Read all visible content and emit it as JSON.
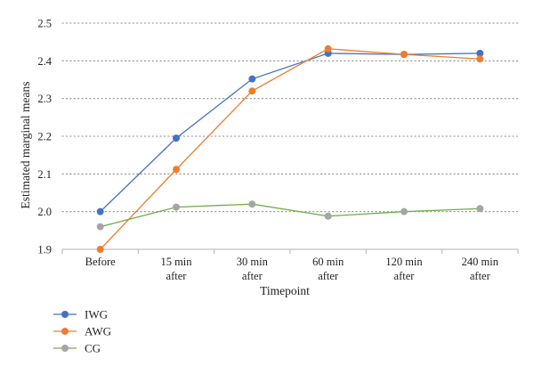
{
  "chart_data": {
    "type": "line",
    "categories": [
      [
        "Before"
      ],
      [
        "15 min",
        "after"
      ],
      [
        "30 min",
        "after"
      ],
      [
        "60 min",
        "after"
      ],
      [
        "120 min",
        "after"
      ],
      [
        "240 min",
        "after"
      ]
    ],
    "series": [
      {
        "name": "IWG",
        "color": "#4472c4",
        "values": [
          2.0,
          2.195,
          2.352,
          2.42,
          2.417,
          2.42
        ]
      },
      {
        "name": "AWG",
        "color": "#ed7d31",
        "values": [
          1.9,
          2.112,
          2.32,
          2.432,
          2.417,
          2.405
        ]
      },
      {
        "name": "CG",
        "color": "#a5a5a5",
        "values": [
          1.96,
          2.012,
          2.02,
          1.988,
          2.0,
          2.008
        ]
      }
    ],
    "line_color_cg": "#70ad47",
    "xlabel": "Timepoint",
    "ylabel": "Estimated marginal means",
    "ylim": [
      1.9,
      2.5
    ],
    "yticks": [
      "1.9",
      "2.0",
      "2.1",
      "2.2",
      "2.3",
      "2.4",
      "2.5"
    ],
    "grid": true,
    "legend_position": "bottom-left"
  }
}
